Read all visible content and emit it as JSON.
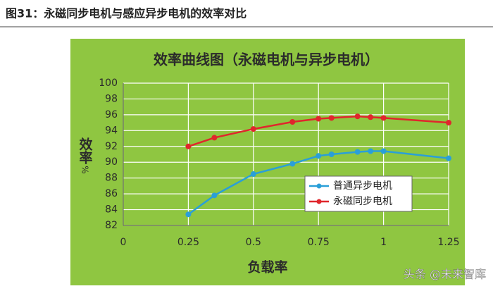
{
  "figure_caption": "图31：永磁同步电机与感应异步电机的效率对比",
  "watermark": "头条 @未来智库",
  "chart_data": {
    "type": "line",
    "title": "效率曲线图（永磁电机与异步电机）",
    "x_label": "负载率",
    "y_label": "效率",
    "y_unit": "%",
    "x": [
      0.25,
      0.35,
      0.5,
      0.65,
      0.75,
      0.8,
      0.9,
      0.95,
      1.0,
      1.25
    ],
    "series": [
      {
        "name": "普通异步电机",
        "color": "#2a9fd8",
        "values": [
          83.4,
          85.8,
          88.5,
          89.8,
          90.8,
          91.0,
          91.3,
          91.4,
          91.4,
          90.5
        ]
      },
      {
        "name": "永磁同步电机",
        "color": "#e0262c",
        "values": [
          92.0,
          93.1,
          94.2,
          95.1,
          95.5,
          95.6,
          95.8,
          95.7,
          95.6,
          95.0
        ]
      }
    ],
    "xlim": [
      0,
      1.25
    ],
    "xticks": [
      0,
      0.25,
      0.5,
      0.75,
      1,
      1.25
    ],
    "ylim": [
      82,
      100
    ],
    "yticks": [
      82,
      84,
      86,
      88,
      90,
      92,
      94,
      96,
      98,
      100
    ],
    "grid": true,
    "legend": "lower right"
  }
}
